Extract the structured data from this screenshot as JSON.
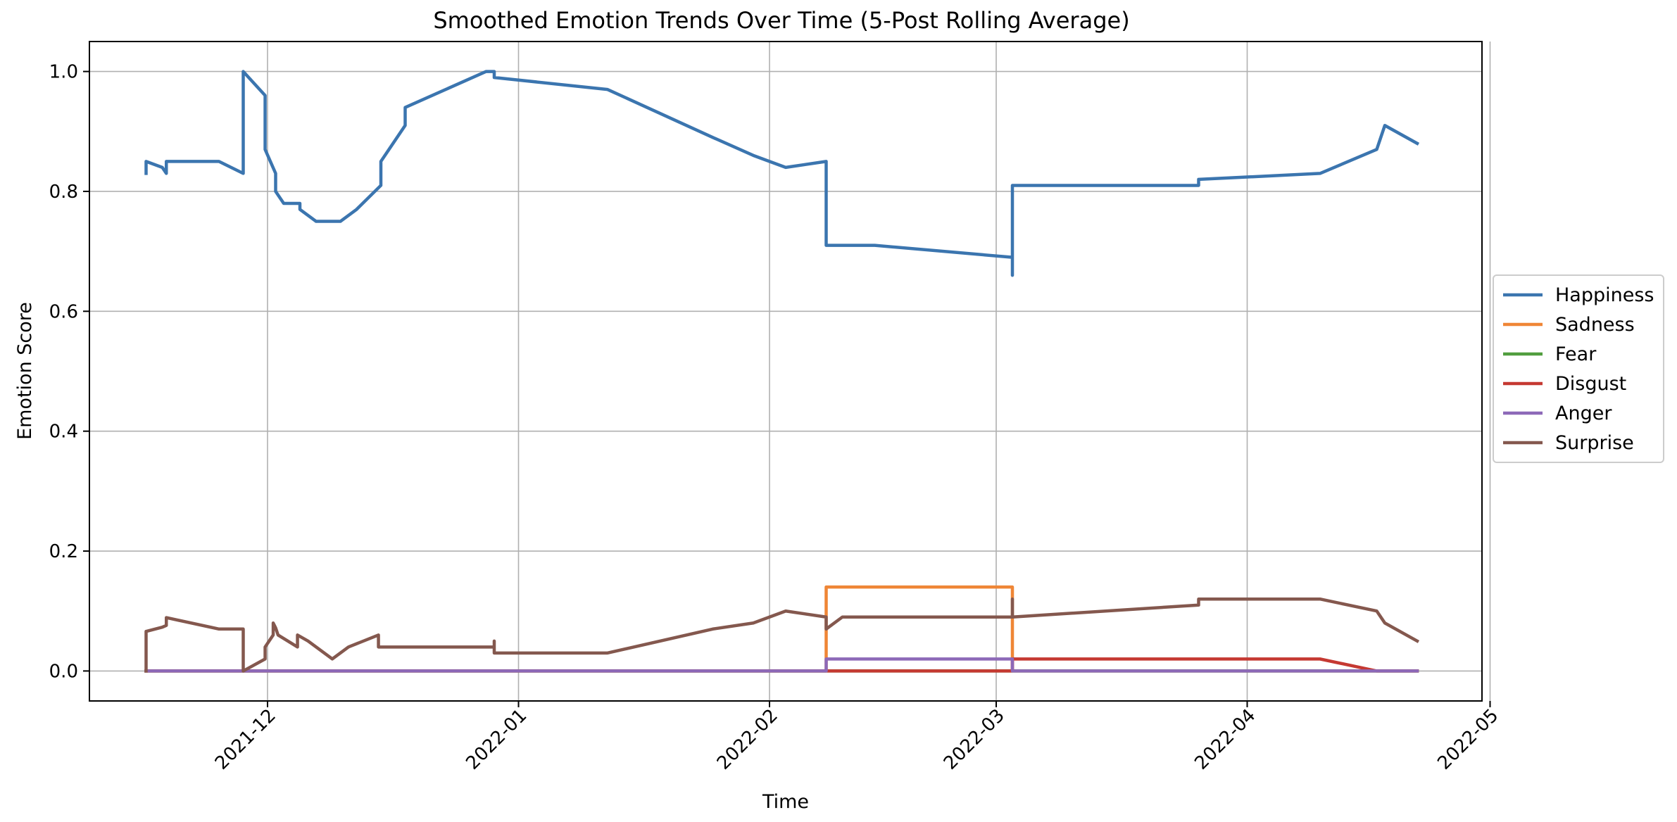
{
  "chart_data": {
    "type": "line",
    "title": "Smoothed Emotion Trends Over Time (5-Post Rolling Average)",
    "xlabel": "Time",
    "ylabel": "Emotion Score",
    "x_axis_type": "date",
    "xlim": [
      "2021-11-09",
      "2022-04-30"
    ],
    "ylim": [
      -0.05,
      1.05
    ],
    "x_ticks": [
      "2021-12-01",
      "2022-01-01",
      "2022-02-01",
      "2022-03-01",
      "2022-04-01",
      "2022-05-01"
    ],
    "x_tick_labels": [
      "2021-12",
      "2022-01",
      "2022-02",
      "2022-03",
      "2022-04",
      "2022-05"
    ],
    "y_ticks": [
      0.0,
      0.2,
      0.4,
      0.6,
      0.8,
      1.0
    ],
    "y_tick_labels": [
      "0.0",
      "0.2",
      "0.4",
      "0.6",
      "0.8",
      "1.0"
    ],
    "grid": true,
    "legend_position": "right",
    "series": [
      {
        "name": "Happiness",
        "color": "#3b75af",
        "points": [
          [
            "2021-11-16",
            0.83
          ],
          [
            "2021-11-16",
            0.85
          ],
          [
            "2021-11-18",
            0.84
          ],
          [
            "2021-11-18.5",
            0.83
          ],
          [
            "2021-11-18.5",
            0.85
          ],
          [
            "2021-11-22",
            0.85
          ],
          [
            "2021-11-25",
            0.85
          ],
          [
            "2021-11-28",
            0.83
          ],
          [
            "2021-11-28",
            1.0
          ],
          [
            "2021-11-30.7",
            0.96
          ],
          [
            "2021-11-30.7",
            0.87
          ],
          [
            "2021-12-02",
            0.83
          ],
          [
            "2021-12-02",
            0.8
          ],
          [
            "2021-12-03",
            0.78
          ],
          [
            "2021-12-05",
            0.78
          ],
          [
            "2021-12-05",
            0.77
          ],
          [
            "2021-12-07",
            0.75
          ],
          [
            "2021-12-10",
            0.75
          ],
          [
            "2021-12-12",
            0.77
          ],
          [
            "2021-12-15",
            0.81
          ],
          [
            "2021-12-15",
            0.85
          ],
          [
            "2021-12-18",
            0.91
          ],
          [
            "2021-12-18",
            0.94
          ],
          [
            "2021-12-28",
            1.0
          ],
          [
            "2021-12-29",
            1.0
          ],
          [
            "2021-12-29",
            0.99
          ],
          [
            "2022-01-12",
            0.97
          ],
          [
            "2022-01-25",
            0.89
          ],
          [
            "2022-01-30",
            0.86
          ],
          [
            "2022-02-03",
            0.84
          ],
          [
            "2022-02-08",
            0.85
          ],
          [
            "2022-02-08",
            0.71
          ],
          [
            "2022-02-14",
            0.71
          ],
          [
            "2022-03-03",
            0.69
          ],
          [
            "2022-03-03",
            0.66
          ],
          [
            "2022-03-03",
            0.81
          ],
          [
            "2022-03-26",
            0.81
          ],
          [
            "2022-03-26",
            0.82
          ],
          [
            "2022-04-10",
            0.83
          ],
          [
            "2022-04-17",
            0.87
          ],
          [
            "2022-04-18",
            0.91
          ],
          [
            "2022-04-22",
            0.88
          ]
        ]
      },
      {
        "name": "Sadness",
        "color": "#ef8636",
        "points": [
          [
            "2021-11-16",
            0.0
          ],
          [
            "2022-02-08",
            0.0
          ],
          [
            "2022-02-08",
            0.14
          ],
          [
            "2022-03-03",
            0.14
          ],
          [
            "2022-03-03",
            0.0
          ],
          [
            "2022-04-22",
            0.0
          ]
        ]
      },
      {
        "name": "Fear",
        "color": "#519e3e",
        "points": [
          [
            "2021-11-16",
            0.0
          ],
          [
            "2022-04-22",
            0.0
          ]
        ]
      },
      {
        "name": "Disgust",
        "color": "#c53932",
        "points": [
          [
            "2021-11-16",
            0.0
          ],
          [
            "2022-03-03",
            0.0
          ],
          [
            "2022-03-03",
            0.02
          ],
          [
            "2022-04-10",
            0.02
          ],
          [
            "2022-04-17",
            0.0
          ],
          [
            "2022-04-22",
            0.0
          ]
        ]
      },
      {
        "name": "Anger",
        "color": "#8d69b8",
        "points": [
          [
            "2021-11-16",
            0.0
          ],
          [
            "2022-02-08",
            0.0
          ],
          [
            "2022-02-08",
            0.02
          ],
          [
            "2022-03-03",
            0.02
          ],
          [
            "2022-03-03",
            0.0
          ],
          [
            "2022-04-22",
            0.0
          ]
        ]
      },
      {
        "name": "Surprise",
        "color": "#84584e",
        "points": [
          [
            "2021-11-16",
            0.0
          ],
          [
            "2021-11-16",
            0.066
          ],
          [
            "2021-11-18",
            0.073
          ],
          [
            "2021-11-18.5",
            0.076
          ],
          [
            "2021-11-18.5",
            0.089
          ],
          [
            "2021-11-25",
            0.07
          ],
          [
            "2021-11-28",
            0.07
          ],
          [
            "2021-11-28",
            0.062
          ],
          [
            "2021-11-28",
            0.0
          ],
          [
            "2021-11-30.7",
            0.02
          ],
          [
            "2021-11-30.7",
            0.04
          ],
          [
            "2021-12-01.7",
            0.06
          ],
          [
            "2021-12-01.7",
            0.08
          ],
          [
            "2021-12-02",
            0.072
          ],
          [
            "2021-12-02.3",
            0.06
          ],
          [
            "2021-12-04.7",
            0.04
          ],
          [
            "2021-12-04.7",
            0.06
          ],
          [
            "2021-12-06",
            0.05
          ],
          [
            "2021-12-07",
            0.04
          ],
          [
            "2021-12-09",
            0.02
          ],
          [
            "2021-12-11",
            0.04
          ],
          [
            "2021-12-14.7",
            0.06
          ],
          [
            "2021-12-14.7",
            0.04
          ],
          [
            "2021-12-29",
            0.04
          ],
          [
            "2021-12-29",
            0.05
          ],
          [
            "2021-12-29",
            0.03
          ],
          [
            "2022-01-12",
            0.03
          ],
          [
            "2022-01-25",
            0.07
          ],
          [
            "2022-01-30",
            0.08
          ],
          [
            "2022-02-03",
            0.1
          ],
          [
            "2022-02-08",
            0.09
          ],
          [
            "2022-02-08",
            0.07
          ],
          [
            "2022-02-10",
            0.09
          ],
          [
            "2022-03-03",
            0.09
          ],
          [
            "2022-03-03",
            0.12
          ],
          [
            "2022-03-03",
            0.09
          ],
          [
            "2022-03-26",
            0.11
          ],
          [
            "2022-03-26",
            0.12
          ],
          [
            "2022-04-10",
            0.12
          ],
          [
            "2022-04-17",
            0.1
          ],
          [
            "2022-04-18",
            0.08
          ],
          [
            "2022-04-22",
            0.05
          ]
        ]
      }
    ]
  }
}
